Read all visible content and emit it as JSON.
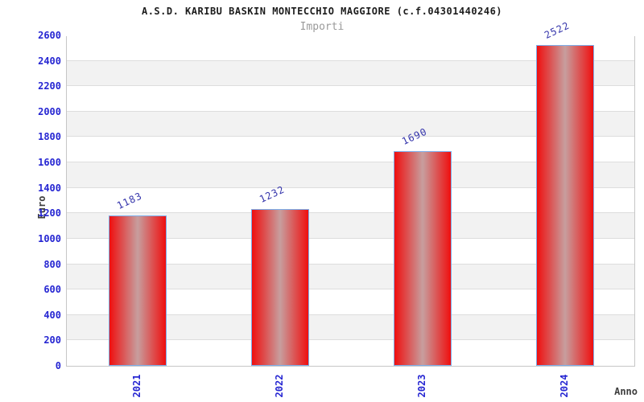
{
  "header": {
    "title": "A.S.D. KARIBU BASKIN MONTECCHIO MAGGIORE (c.f.04301440246)",
    "subtitle": "Importi"
  },
  "chart_data": {
    "type": "bar",
    "title": "A.S.D. KARIBU BASKIN MONTECCHIO MAGGIORE (c.f.04301440246)",
    "subtitle": "Importi",
    "categories": [
      "2021",
      "2022",
      "2023",
      "2024"
    ],
    "values": [
      1183,
      1232,
      1690,
      2522
    ],
    "value_labels": [
      "1183",
      "1232",
      "1690",
      "2522"
    ],
    "xlabel": "Anno",
    "ylabel": "Euro",
    "ylim": [
      0,
      2600
    ],
    "ytick_step": 200,
    "yticks": [
      "0",
      "200",
      "400",
      "600",
      "800",
      "1000",
      "1200",
      "1400",
      "1600",
      "1800",
      "2000",
      "2200",
      "2400",
      "2600"
    ],
    "legend": "none",
    "grid": "horizontal gridlines with alternating white/gray bands",
    "colors": {
      "bar_edge": "#ef0f0f",
      "bar_center": "#c79e9e",
      "bar_border": "#7cadea",
      "axis_label_blue": "#2626d2",
      "value_label_blue": "#3434ab",
      "band_gray": "#f2f2f2",
      "gridline_gray": "#dddddd",
      "subtitle_gray": "#9a9a9a",
      "text_dark": "#3d3d3d"
    }
  }
}
